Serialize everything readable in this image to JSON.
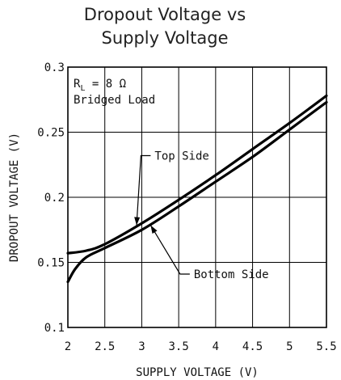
{
  "chart_data": {
    "type": "line",
    "title_line1": "Dropout Voltage vs",
    "title_line2": "Supply Voltage",
    "xlabel": "SUPPLY VOLTAGE (V)",
    "ylabel": "DROPOUT VOLTAGE (V)",
    "xlim": [
      2,
      5.5
    ],
    "ylim": [
      0.1,
      0.3
    ],
    "xticks": [
      2,
      2.5,
      3,
      3.5,
      4,
      4.5,
      5,
      5.5
    ],
    "xtick_labels": [
      "2",
      "2.5",
      "3",
      "3.5",
      "4",
      "4.5",
      "5",
      "5.5"
    ],
    "yticks": [
      0.1,
      0.15,
      0.2,
      0.25,
      0.3
    ],
    "ytick_labels": [
      "0.1",
      "0.15",
      "0.2",
      "0.25",
      "0.3"
    ],
    "grid": true,
    "conditions": {
      "rl_prefix": "R",
      "rl_sub": "L",
      "rl_value": " = 8 Ω",
      "load": "Bridged Load"
    },
    "series": [
      {
        "name": "Top Side",
        "x": [
          2.0,
          2.25,
          2.5,
          3.0,
          3.5,
          4.0,
          4.5,
          5.0,
          5.5
        ],
        "y": [
          0.157,
          0.159,
          0.164,
          0.18,
          0.198,
          0.217,
          0.237,
          0.257,
          0.278
        ]
      },
      {
        "name": "Bottom Side",
        "x": [
          2.0,
          2.1,
          2.25,
          2.5,
          3.0,
          3.5,
          4.0,
          4.5,
          5.0,
          5.5
        ],
        "y": [
          0.135,
          0.145,
          0.154,
          0.161,
          0.175,
          0.193,
          0.212,
          0.231,
          0.252,
          0.273
        ]
      }
    ],
    "annotations": [
      {
        "series": "Top Side",
        "text": "Top Side",
        "text_x": 3.12,
        "text_y": 0.232,
        "arrow_to_x": 2.93,
        "arrow_to_y": 0.1785
      },
      {
        "series": "Bottom Side",
        "text": "Bottom Side",
        "text_x": 3.65,
        "text_y": 0.141,
        "arrow_to_x": 3.12,
        "arrow_to_y": 0.1785
      }
    ]
  }
}
